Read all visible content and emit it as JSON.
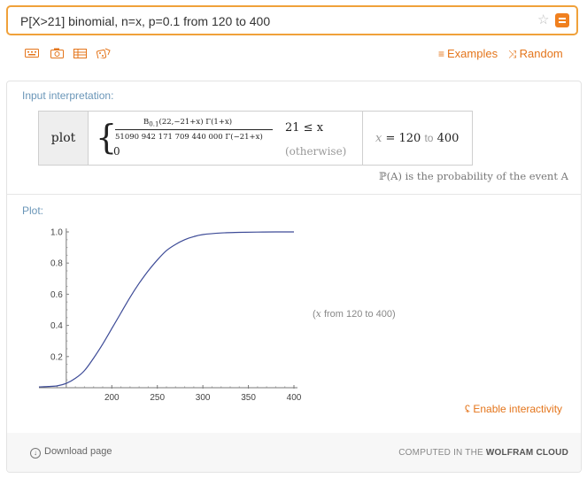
{
  "search": {
    "query": "P[X>21] binomial, n=x, p=0.1 from 120 to 400",
    "star_icon": "star-icon",
    "equals_icon": "equals-icon"
  },
  "toolbar": {
    "icons": [
      "keyboard-icon",
      "camera-icon",
      "table-icon",
      "random-dice-icon"
    ],
    "examples_label": "Examples",
    "random_label": "Random"
  },
  "interpretation": {
    "label": "Input interpretation:",
    "plot_word": "plot",
    "numerator": "B",
    "numerator_sub": "0.1",
    "numerator_args": "(22,−21+x) Γ(1+x)",
    "denominator": "51090 942 171 709 440 000 Γ(−21+x)",
    "condition": "21 ≤ x",
    "zero": "0",
    "otherwise": "(otherwise)",
    "range_var": "x",
    "range_eq": "= 120",
    "range_to": "to",
    "range_end": "400",
    "note": "ℙ(A) is the probability of the event A"
  },
  "plot": {
    "label": "Plot:",
    "range_open": "(",
    "range_var": "x",
    "range_text": " from 120 to 400",
    "range_close": ")",
    "enable_label": "Enable interactivity"
  },
  "footer": {
    "download_label": "Download page",
    "computed_prefix": "COMPUTED IN THE",
    "computed_brand": "WOLFRAM CLOUD"
  },
  "colors": {
    "accent": "#e4751b",
    "search_border": "#f0a13a",
    "label_blue": "#6a96b8",
    "curve": "#3d4b97"
  },
  "chart_data": {
    "type": "line",
    "x_ticks": [
      200,
      250,
      300,
      350,
      400
    ],
    "y_ticks": [
      0.2,
      0.4,
      0.6,
      0.8,
      1.0
    ],
    "y_tick_labels": [
      "0.2",
      "0.4",
      "0.6",
      "0.8",
      "1.0"
    ],
    "xlim": [
      120,
      400
    ],
    "ylim": [
      0,
      1.0
    ],
    "xlabel": "",
    "ylabel": "",
    "series": [
      {
        "x": [
          120,
          130,
          140,
          150,
          160,
          170,
          180,
          190,
          200,
          210,
          220,
          230,
          240,
          250,
          260,
          270,
          280,
          290,
          300,
          320,
          340,
          360,
          380,
          400
        ],
        "y": [
          0.005,
          0.008,
          0.012,
          0.028,
          0.06,
          0.11,
          0.19,
          0.28,
          0.38,
          0.48,
          0.58,
          0.67,
          0.75,
          0.82,
          0.88,
          0.92,
          0.95,
          0.97,
          0.983,
          0.993,
          0.997,
          0.999,
          1.0,
          1.0
        ]
      }
    ]
  }
}
